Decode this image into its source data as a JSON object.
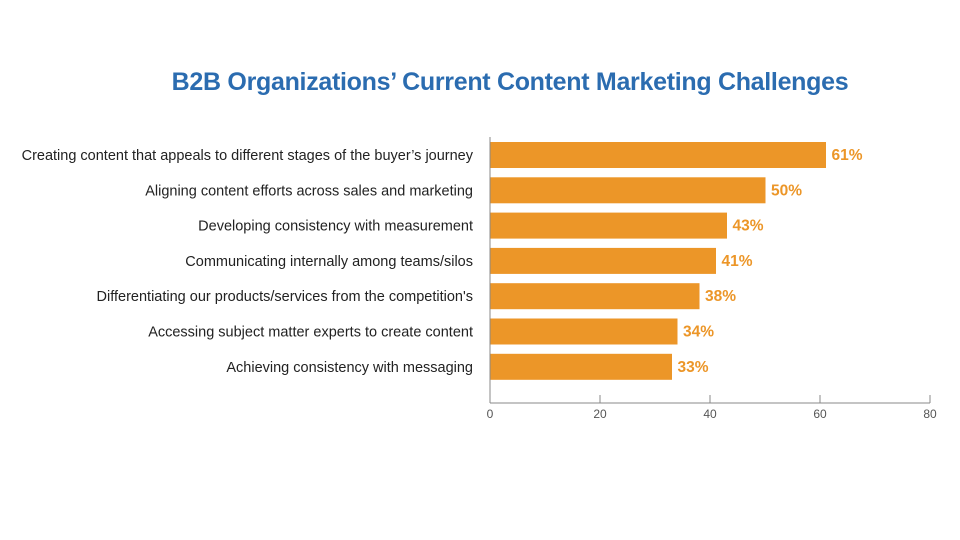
{
  "chart_data": {
    "type": "bar",
    "orientation": "horizontal",
    "title": "B2B Organizations’ Current Content Marketing Challenges",
    "categories": [
      "Creating content that appeals to different stages of the buyer’s journey",
      "Aligning content efforts across sales and marketing",
      "Developing consistency with measurement",
      "Communicating internally among teams/silos",
      "Differentiating our products/services from the competition's",
      "Accessing subject matter experts to create content",
      "Achieving consistency with messaging"
    ],
    "values": [
      61,
      50,
      43,
      41,
      38,
      34,
      33
    ],
    "value_labels": [
      "61%",
      "50%",
      "43%",
      "41%",
      "38%",
      "34%",
      "33%"
    ],
    "xlim": [
      0,
      80
    ],
    "xticks": [
      0,
      20,
      40,
      60,
      80
    ],
    "xlabel": "",
    "ylabel": "",
    "grid": false,
    "legend": "none"
  },
  "colors": {
    "bar": "#ec9628",
    "value_label": "#ec9628",
    "title": "#2b6cb0",
    "axis": "#888888"
  }
}
